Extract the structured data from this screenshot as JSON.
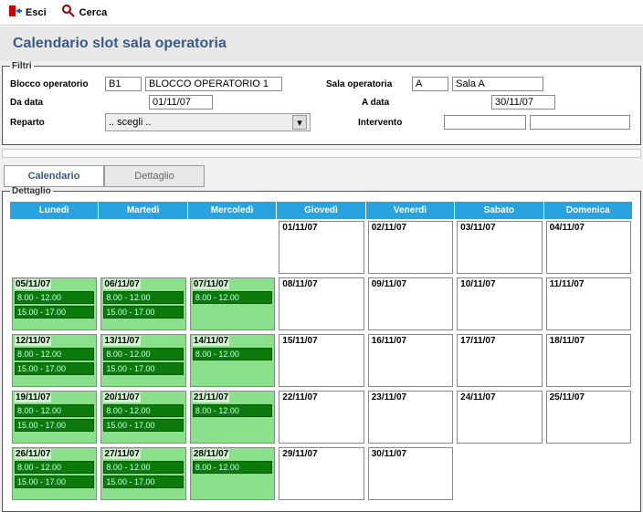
{
  "toolbar": {
    "exit_label": "Esci",
    "search_label": "Cerca"
  },
  "page_title": "Calendario slot sala operatoria",
  "filters_legend": "Filtri",
  "filters": {
    "blocco_label": "Blocco operatorio",
    "blocco_code": "B1",
    "blocco_desc": "BLOCCO OPERATORIO 1",
    "sala_label": "Sala operatoria",
    "sala_code": "A",
    "sala_desc": "Sala A",
    "da_data_label": "Da data",
    "da_data_value": "01/11/07",
    "a_data_label": "A data",
    "a_data_value": "30/11/07",
    "reparto_label": "Reparto",
    "reparto_placeholder": ".. scegli ..",
    "intervento_label": "Intervento"
  },
  "tabs": {
    "calendario": "Calendario",
    "dettaglio": "Dettaglio"
  },
  "dettaglio_legend": "Dettaglio",
  "days_header": [
    "Lunedì",
    "Martedì",
    "Mercoledì",
    "Giovedì",
    "Venerdì",
    "Sabato",
    "Domenica"
  ],
  "slot_times": {
    "am": "8.00 - 12.00",
    "pm": "15.00 - 17.00"
  },
  "colors": {
    "header_bg": "#29a3e0",
    "green_cell": "#8be08b",
    "slot_bg": "#0b7a0b",
    "title_color": "#3a5a8a"
  },
  "calendar": [
    [
      {
        "empty": true
      },
      {
        "empty": true
      },
      {
        "empty": true
      },
      {
        "date": "01/11/07"
      },
      {
        "date": "02/11/07"
      },
      {
        "date": "03/11/07"
      },
      {
        "date": "04/11/07"
      }
    ],
    [
      {
        "date": "05/11/07",
        "green": true,
        "slots": [
          "am",
          "pm"
        ]
      },
      {
        "date": "06/11/07",
        "green": true,
        "slots": [
          "am",
          "pm"
        ]
      },
      {
        "date": "07/11/07",
        "green": true,
        "slots": [
          "am"
        ]
      },
      {
        "date": "08/11/07"
      },
      {
        "date": "09/11/07"
      },
      {
        "date": "10/11/07"
      },
      {
        "date": "11/11/07"
      }
    ],
    [
      {
        "date": "12/11/07",
        "green": true,
        "slots": [
          "am",
          "pm"
        ]
      },
      {
        "date": "13/11/07",
        "green": true,
        "slots": [
          "am",
          "pm"
        ]
      },
      {
        "date": "14/11/07",
        "green": true,
        "slots": [
          "am"
        ]
      },
      {
        "date": "15/11/07"
      },
      {
        "date": "16/11/07"
      },
      {
        "date": "17/11/07"
      },
      {
        "date": "18/11/07"
      }
    ],
    [
      {
        "date": "19/11/07",
        "green": true,
        "slots": [
          "am",
          "pm"
        ]
      },
      {
        "date": "20/11/07",
        "green": true,
        "slots": [
          "am",
          "pm"
        ]
      },
      {
        "date": "21/11/07",
        "green": true,
        "slots": [
          "am"
        ]
      },
      {
        "date": "22/11/07"
      },
      {
        "date": "23/11/07"
      },
      {
        "date": "24/11/07"
      },
      {
        "date": "25/11/07"
      }
    ],
    [
      {
        "date": "26/11/07",
        "green": true,
        "slots": [
          "am",
          "pm"
        ]
      },
      {
        "date": "27/11/07",
        "green": true,
        "slots": [
          "am",
          "pm"
        ]
      },
      {
        "date": "28/11/07",
        "green": true,
        "slots": [
          "am"
        ]
      },
      {
        "date": "29/11/07"
      },
      {
        "date": "30/11/07"
      },
      {
        "empty": true
      },
      {
        "empty": true
      }
    ]
  ]
}
